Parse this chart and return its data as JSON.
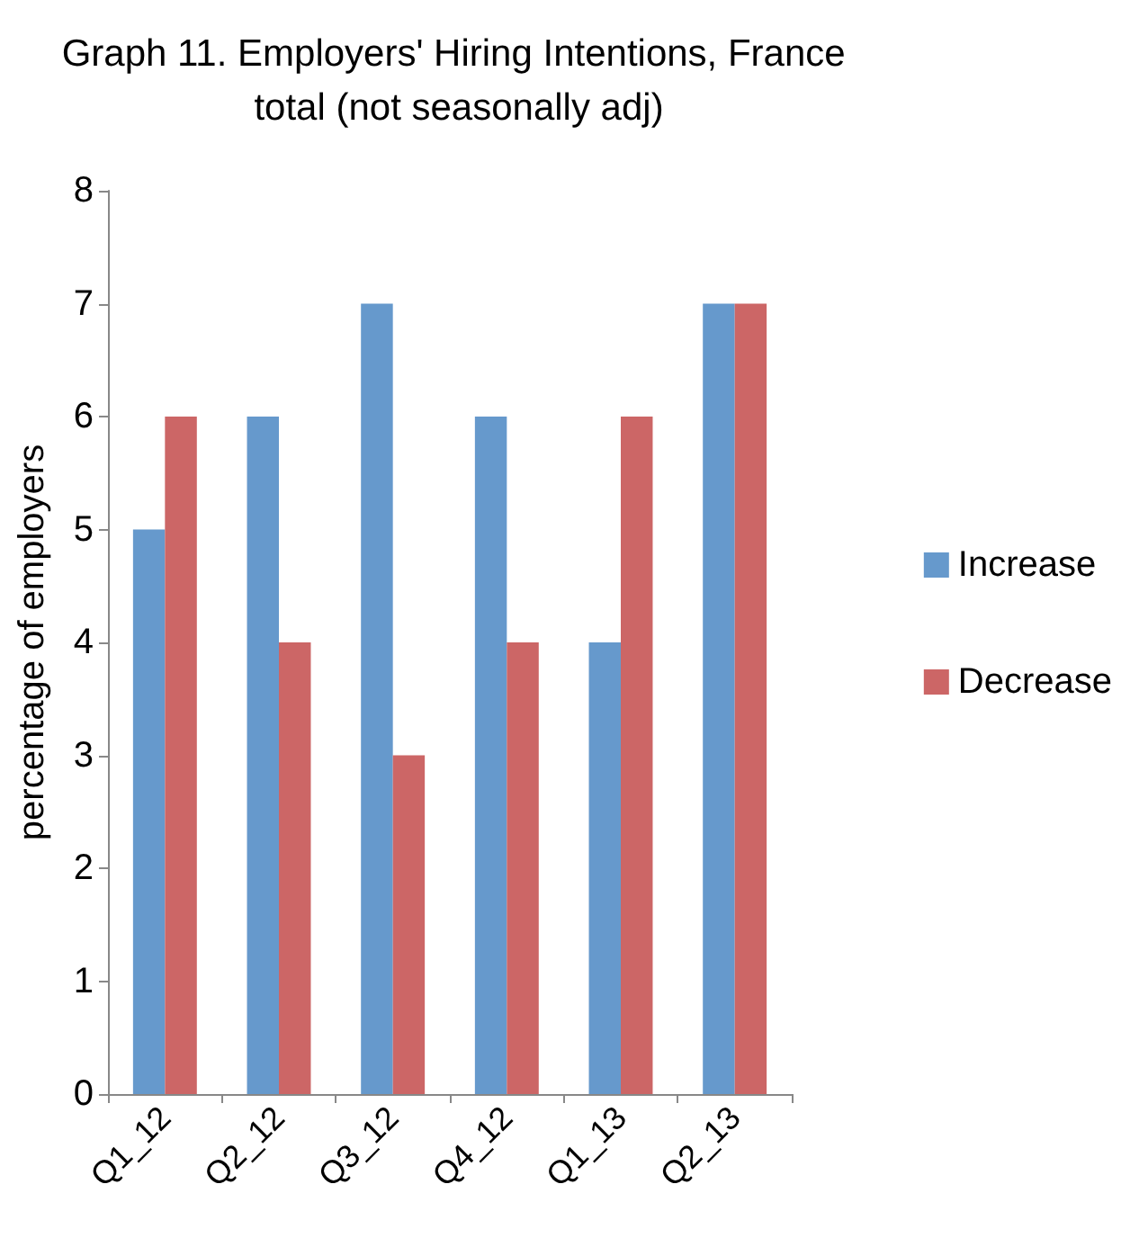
{
  "chart_data": {
    "type": "bar",
    "title": "Graph 11. Employers' Hiring Intentions, France total (not seasonally adj)",
    "ylabel": "percentage of employers",
    "categories": [
      "Q1_12",
      "Q2_12",
      "Q3_12",
      "Q4_12",
      "Q1_13",
      "Q2_13"
    ],
    "series": [
      {
        "name": "Increase",
        "color": "#6699cc",
        "values": [
          5,
          6,
          7,
          6,
          4,
          7
        ]
      },
      {
        "name": "Decrease",
        "color": "#cc6666",
        "values": [
          6,
          4,
          3,
          4,
          6,
          7
        ]
      }
    ],
    "ylim": [
      0,
      8
    ],
    "yticks": [
      0,
      1,
      2,
      3,
      4,
      5,
      6,
      7,
      8
    ],
    "grid": false,
    "legend": "right"
  }
}
